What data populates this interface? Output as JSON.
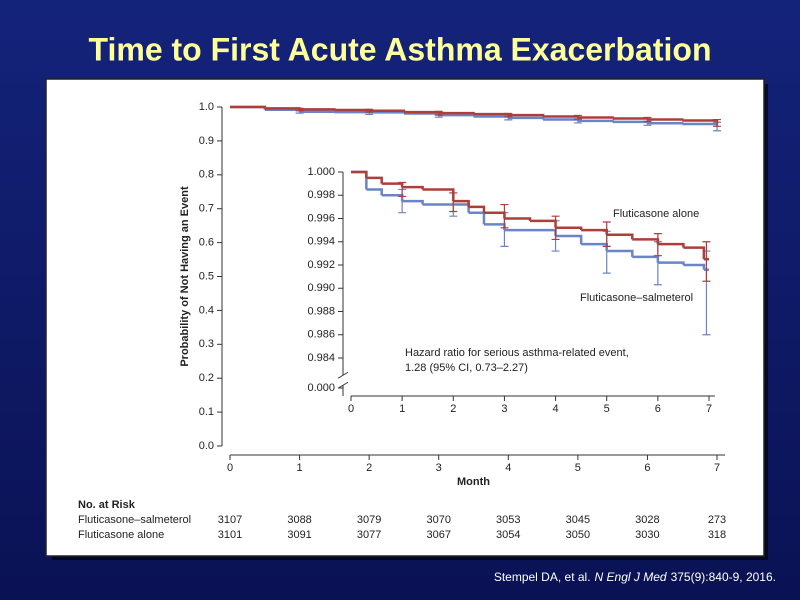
{
  "slide": {
    "title": "Time to First Acute Asthma Exacerbation",
    "citation": [
      "Stempel DA, et al.",
      "N Engl J Med",
      "375(9):840-9, 2016."
    ]
  },
  "chart_data": [
    {
      "type": "line",
      "step": true,
      "ylabel": "Probability of Not Having an Event",
      "xlabel": "Month",
      "xlim": [
        0,
        7
      ],
      "ylim": [
        0,
        1
      ],
      "xticks": [
        0,
        1,
        2,
        3,
        4,
        5,
        6,
        7
      ],
      "yticks": [
        {
          "value": 0,
          "label": "0.0"
        },
        {
          "value": 0.1,
          "label": "0.1"
        },
        {
          "value": 0.2,
          "label": "0.2"
        },
        {
          "value": 0.3,
          "label": "0.3"
        },
        {
          "value": 0.4,
          "label": "0.4"
        },
        {
          "value": 0.5,
          "label": "0.5"
        },
        {
          "value": 0.6,
          "label": "0.6"
        },
        {
          "value": 0.7,
          "label": "0.7"
        },
        {
          "value": 0.8,
          "label": "0.8"
        },
        {
          "value": 0.9,
          "label": "0.9"
        },
        {
          "value": 1,
          "label": "1.0"
        }
      ],
      "series": [
        {
          "color": "#6b84c6",
          "x": [
            0,
            0.5,
            1,
            1.5,
            2,
            2.5,
            3,
            3.5,
            4,
            4.5,
            5,
            5.5,
            6,
            6.5,
            7
          ],
          "values": [
            1.0,
            0.992,
            0.986,
            0.985,
            0.984,
            0.981,
            0.976,
            0.972,
            0.968,
            0.963,
            0.959,
            0.956,
            0.952,
            0.95,
            0.944
          ],
          "ci": {
            "x": [
              1,
              2,
              3,
              4,
              5,
              6,
              7
            ],
            "low": [
              0.982,
              0.978,
              0.97,
              0.962,
              0.953,
              0.946,
              0.93
            ],
            "high": [
              0.991,
              0.988,
              0.982,
              0.974,
              0.965,
              0.958,
              0.955
            ]
          }
        },
        {
          "color": "#ad3f3a",
          "x": [
            0,
            0.5,
            1,
            1.5,
            2,
            2.5,
            3,
            3.5,
            4,
            4.5,
            5,
            5.5,
            6,
            6.5,
            7
          ],
          "values": [
            1.0,
            0.996,
            0.993,
            0.991,
            0.989,
            0.985,
            0.982,
            0.979,
            0.976,
            0.972,
            0.969,
            0.966,
            0.963,
            0.96,
            0.953
          ],
          "ci": {
            "x": [
              1,
              2,
              3,
              4,
              5,
              6,
              7
            ],
            "low": [
              0.989,
              0.985,
              0.976,
              0.971,
              0.964,
              0.957,
              0.943
            ],
            "high": [
              0.996,
              0.993,
              0.987,
              0.981,
              0.975,
              0.969,
              0.963
            ]
          }
        }
      ],
      "risk_table": {
        "title": "No. at Risk",
        "rows": [
          {
            "label": "Fluticasone–salmeterol",
            "values": [
              3107,
              3088,
              3079,
              3070,
              3053,
              3045,
              3028,
              273
            ]
          },
          {
            "label": "Fluticasone alone",
            "values": [
              3101,
              3091,
              3077,
              3067,
              3054,
              3050,
              3030,
              318
            ]
          }
        ]
      }
    },
    {
      "type": "line",
      "step": true,
      "axis_break": true,
      "xlim": [
        0,
        7
      ],
      "ylim": [
        0.982,
        1.0
      ],
      "xticks": [
        0,
        1,
        2,
        3,
        4,
        5,
        6,
        7
      ],
      "yticks": [
        {
          "value": 0,
          "label": "0.000"
        },
        {
          "value": 0.984,
          "label": "0.984"
        },
        {
          "value": 0.986,
          "label": "0.986"
        },
        {
          "value": 0.988,
          "label": "0.988"
        },
        {
          "value": 0.99,
          "label": "0.990"
        },
        {
          "value": 0.992,
          "label": "0.992"
        },
        {
          "value": 0.994,
          "label": "0.994"
        },
        {
          "value": 0.996,
          "label": "0.996"
        },
        {
          "value": 0.998,
          "label": "0.998"
        },
        {
          "value": 1,
          "label": "1.000"
        }
      ],
      "series": [
        {
          "name": "Fluticasone–salmeterol",
          "color": "#6b84c6",
          "x": [
            0,
            0.3,
            0.6,
            1,
            1.4,
            2,
            2.3,
            2.6,
            3,
            3.5,
            4,
            4.5,
            5,
            5.5,
            6,
            6.5,
            6.9,
            7
          ],
          "values": [
            1.0,
            0.9985,
            0.998,
            0.9975,
            0.9972,
            0.9972,
            0.9965,
            0.9955,
            0.995,
            0.995,
            0.9945,
            0.9938,
            0.9932,
            0.9927,
            0.9922,
            0.992,
            0.9916,
            0.9916
          ],
          "ci": {
            "x": [
              1,
              2,
              3,
              4,
              5,
              6,
              6.95
            ],
            "low": [
              0.9965,
              0.9962,
              0.9936,
              0.9932,
              0.9913,
              0.9903,
              0.986
            ],
            "high": [
              0.9985,
              0.9982,
              0.9965,
              0.9958,
              0.9949,
              0.994,
              0.9932
            ]
          }
        },
        {
          "name": "Fluticasone alone",
          "color": "#ad3f3a",
          "x": [
            0,
            0.3,
            0.6,
            1,
            1.4,
            2,
            2.3,
            2.6,
            3,
            3.5,
            4,
            4.5,
            5,
            5.5,
            6,
            6.5,
            6.9,
            7
          ],
          "values": [
            1.0,
            0.9995,
            0.999,
            0.9987,
            0.9985,
            0.9975,
            0.997,
            0.9965,
            0.996,
            0.9958,
            0.9952,
            0.995,
            0.9946,
            0.9942,
            0.9938,
            0.9935,
            0.9925,
            0.9925
          ],
          "ci": {
            "x": [
              1,
              2,
              3,
              4,
              5,
              6,
              6.95
            ],
            "low": [
              0.9979,
              0.9966,
              0.9952,
              0.9942,
              0.9936,
              0.9928,
              0.9906
            ],
            "high": [
              0.9991,
              0.9982,
              0.9972,
              0.9962,
              0.9957,
              0.9947,
              0.994
            ]
          }
        }
      ],
      "annotation": [
        "Hazard ratio for serious asthma-related event,",
        "1.28 (95% CI, 0.73–2.27)"
      ]
    }
  ]
}
